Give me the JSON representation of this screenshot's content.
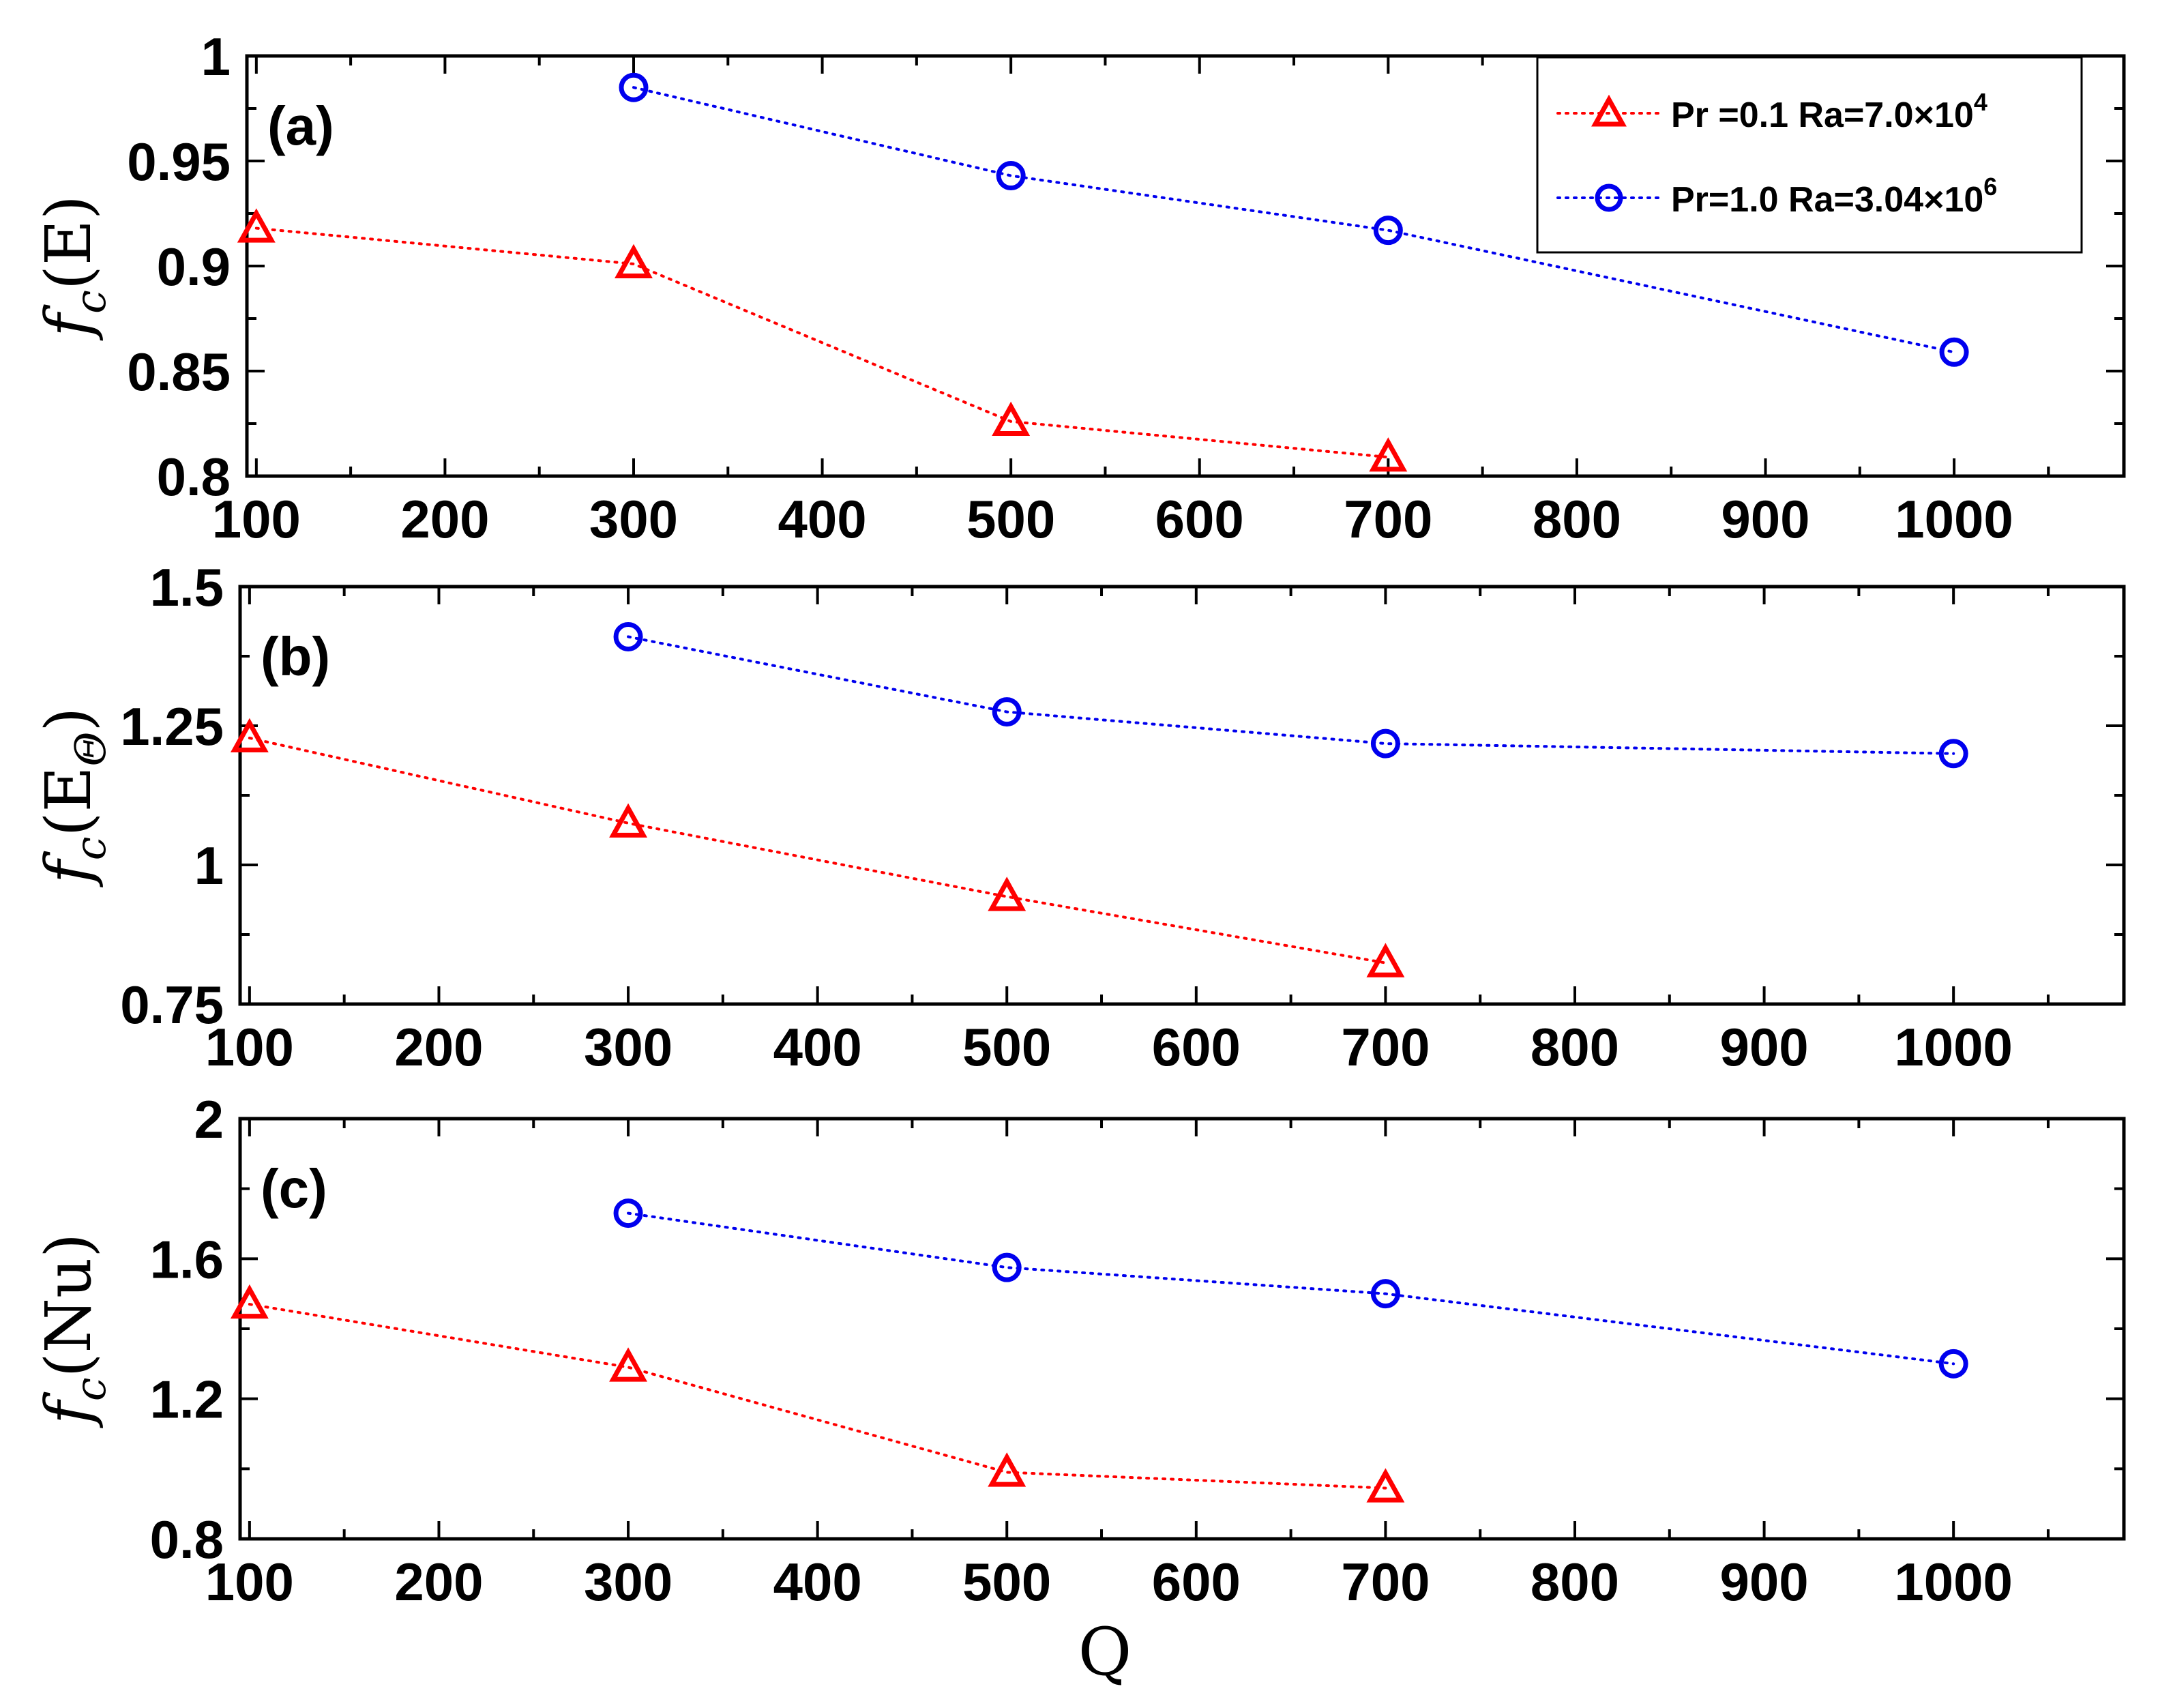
{
  "figure": {
    "xlabel": "Q",
    "legend_position": "top-right of panel (a)",
    "colors": {
      "red": "#ff0000",
      "blue": "#0000ee",
      "axis": "#000000"
    }
  },
  "chart_data": [
    {
      "type": "line",
      "panel_label": "(a)",
      "ylabel": "f",
      "ylabel_sub": "c",
      "ylabel_arg": "(E)",
      "xlim": [
        95,
        1090
      ],
      "ylim": [
        0.8,
        1.0
      ],
      "xticks": [
        "100",
        "200",
        "300",
        "400",
        "500",
        "600",
        "700",
        "800",
        "900",
        "1000"
      ],
      "yticks": [
        "0.8",
        "0.85",
        "0.9",
        "0.95",
        "1"
      ],
      "series": [
        {
          "name": "Pr =0.1 Ra=7.0×10^4",
          "marker": "triangle",
          "color": "#ff0000",
          "x": [
            100,
            300,
            500,
            700
          ],
          "y": [
            0.918,
            0.901,
            0.826,
            0.809
          ]
        },
        {
          "name": "Pr=1.0 Ra=3.04×10^6",
          "marker": "circle",
          "color": "#0000ee",
          "x": [
            300,
            500,
            700,
            1000
          ],
          "y": [
            0.985,
            0.943,
            0.917,
            0.859
          ]
        }
      ],
      "legend": [
        {
          "marker": "triangle",
          "color": "#ff0000",
          "text": "Pr =0.1 Ra=7.0×10",
          "exp": "4"
        },
        {
          "marker": "circle",
          "color": "#0000ee",
          "text": "Pr=1.0 Ra=3.04×10",
          "exp": "6"
        }
      ]
    },
    {
      "type": "line",
      "panel_label": "(b)",
      "ylabel": "f",
      "ylabel_sub": "c",
      "ylabel_arg": "(E",
      "ylabel_arg_sub": "Θ",
      "ylabel_close": ")",
      "xlim": [
        95,
        1090
      ],
      "ylim": [
        0.75,
        1.5
      ],
      "xticks": [
        "100",
        "200",
        "300",
        "400",
        "500",
        "600",
        "700",
        "800",
        "900",
        "1000"
      ],
      "yticks": [
        "0.75",
        "1",
        "1.25",
        "1.5"
      ],
      "series": [
        {
          "name": "Pr =0.1 Ra=7.0×10^4",
          "marker": "triangle",
          "color": "#ff0000",
          "x": [
            100,
            300,
            500,
            700
          ],
          "y": [
            1.228,
            1.075,
            0.943,
            0.824
          ]
        },
        {
          "name": "Pr=1.0 Ra=3.04×10^6",
          "marker": "circle",
          "color": "#0000ee",
          "x": [
            300,
            500,
            700,
            1000
          ],
          "y": [
            1.41,
            1.275,
            1.218,
            1.2
          ]
        }
      ]
    },
    {
      "type": "line",
      "panel_label": "(c)",
      "ylabel": "f",
      "ylabel_sub": "c",
      "ylabel_arg": "(Nu)",
      "xlim": [
        95,
        1090
      ],
      "ylim": [
        0.8,
        2.0
      ],
      "xticks": [
        "100",
        "200",
        "300",
        "400",
        "500",
        "600",
        "700",
        "800",
        "900",
        "1000"
      ],
      "yticks": [
        "0.8",
        "1.2",
        "1.6",
        "2"
      ],
      "series": [
        {
          "name": "Pr =0.1 Ra=7.0×10^4",
          "marker": "triangle",
          "color": "#ff0000",
          "x": [
            100,
            300,
            500,
            700
          ],
          "y": [
            1.47,
            1.29,
            0.99,
            0.945
          ]
        },
        {
          "name": "Pr=1.0 Ra=3.04×10^6",
          "marker": "circle",
          "color": "#0000ee",
          "x": [
            300,
            500,
            700,
            1000
          ],
          "y": [
            1.73,
            1.575,
            1.5,
            1.3
          ]
        }
      ]
    }
  ]
}
